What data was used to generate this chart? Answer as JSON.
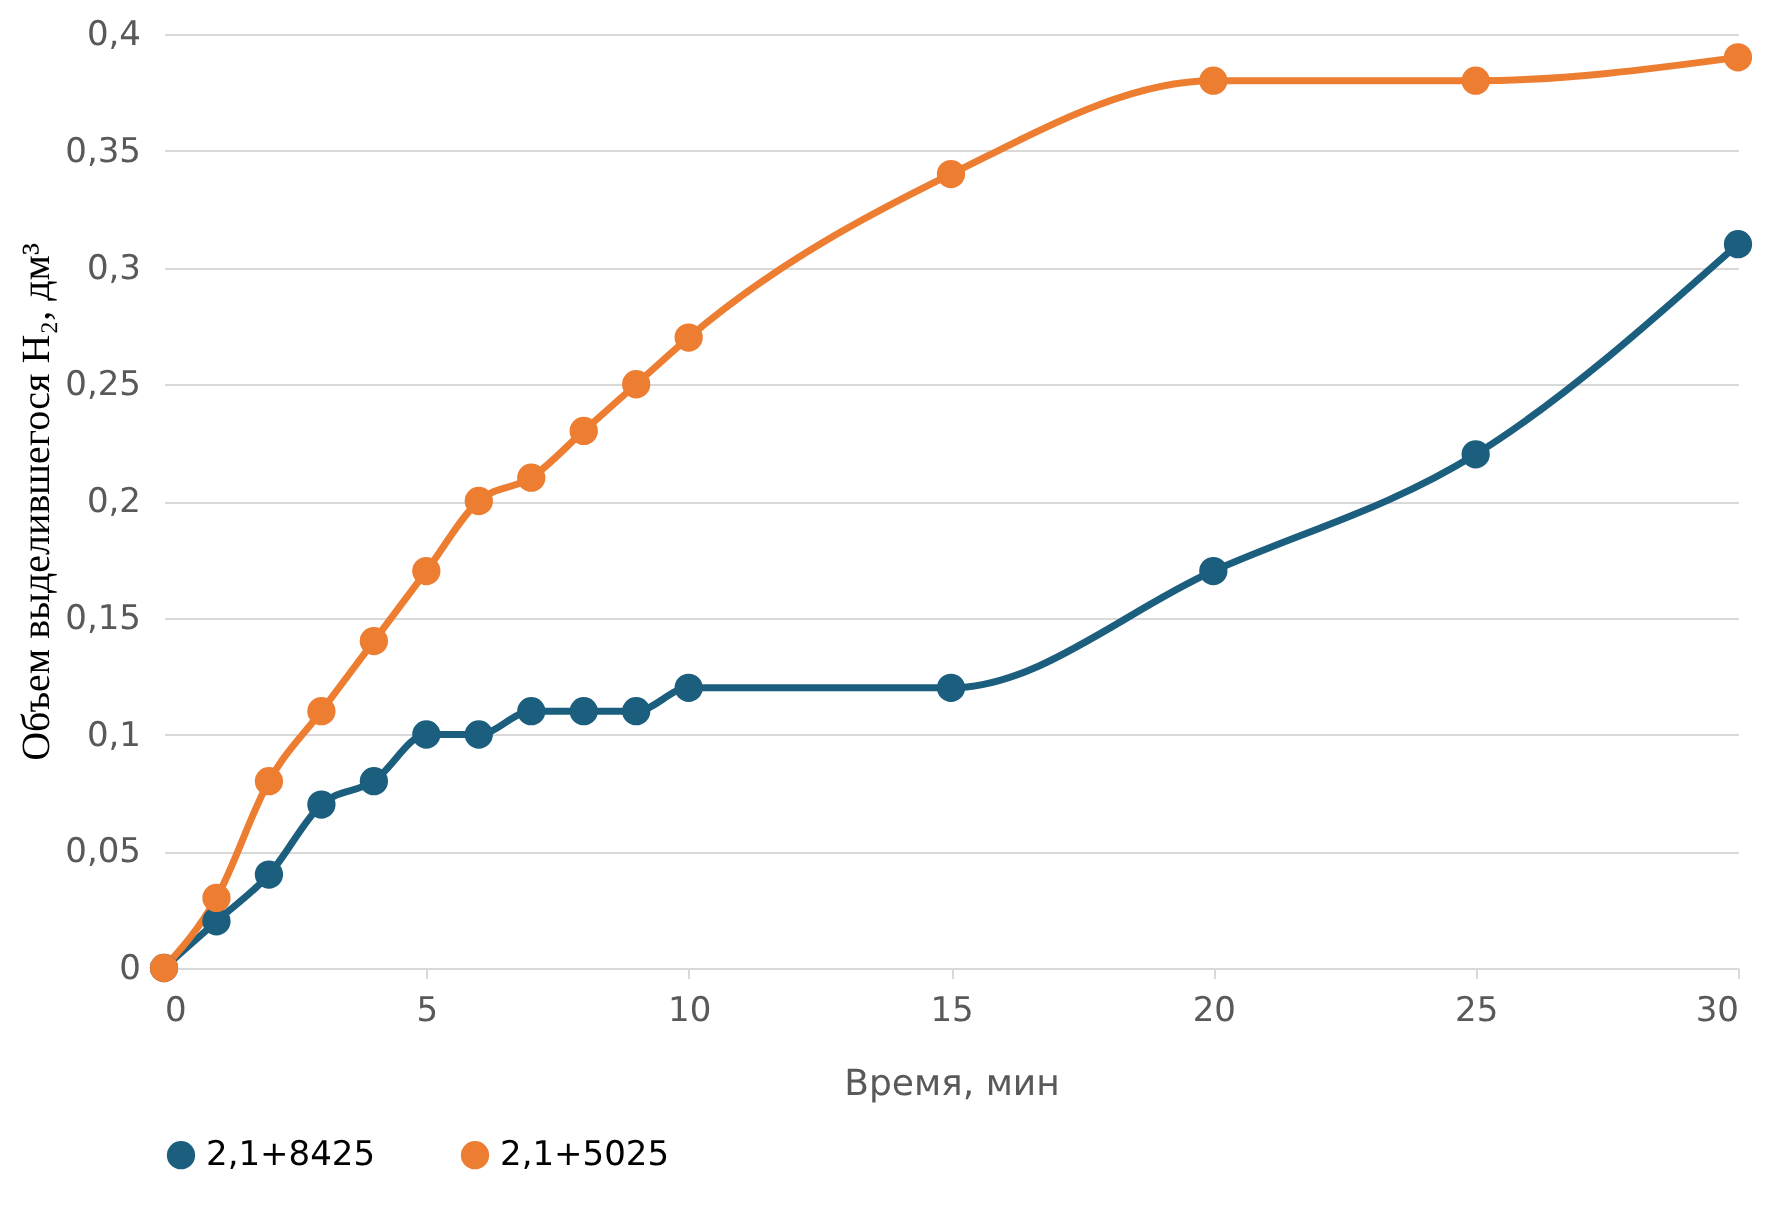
{
  "chart_data": {
    "type": "line",
    "x": [
      0,
      1,
      2,
      3,
      4,
      5,
      6,
      7,
      8,
      9,
      10,
      15,
      20,
      25,
      30
    ],
    "series": [
      {
        "name": "2,1+8425",
        "color": "#1b5e7e",
        "values": [
          0,
          0.02,
          0.04,
          0.07,
          0.08,
          0.1,
          0.1,
          0.11,
          0.11,
          0.11,
          0.12,
          0.12,
          0.17,
          0.22,
          0.31
        ]
      },
      {
        "name": "2,1+5025",
        "color": "#ed7d31",
        "values": [
          0,
          0.03,
          0.08,
          0.11,
          0.14,
          0.17,
          0.2,
          0.21,
          0.23,
          0.25,
          0.27,
          0.34,
          0.38,
          0.38,
          0.39
        ]
      }
    ],
    "xlabel": "Время, мин",
    "ylabel": "Объем выделившегося H₂, дм³",
    "xlim": [
      0,
      30
    ],
    "xticks": [
      0,
      5,
      10,
      15,
      20,
      25,
      30
    ],
    "ylim": [
      0,
      0.4
    ],
    "yticks": [
      0,
      {
        "value": 0.05,
        "label": "0,05"
      },
      {
        "value": 0.1,
        "label": "0,1"
      },
      {
        "value": 0.15,
        "label": "0,15"
      },
      {
        "value": 0.2,
        "label": "0,2"
      },
      {
        "value": 0.25,
        "label": "0,25"
      },
      {
        "value": 0.3,
        "label": "0,3"
      },
      {
        "value": 0.35,
        "label": "0,35"
      },
      {
        "value": 0.4,
        "label": "0,4"
      }
    ],
    "grid": "y",
    "legend": "bottom",
    "marker": "circle",
    "line_style": "solid"
  }
}
